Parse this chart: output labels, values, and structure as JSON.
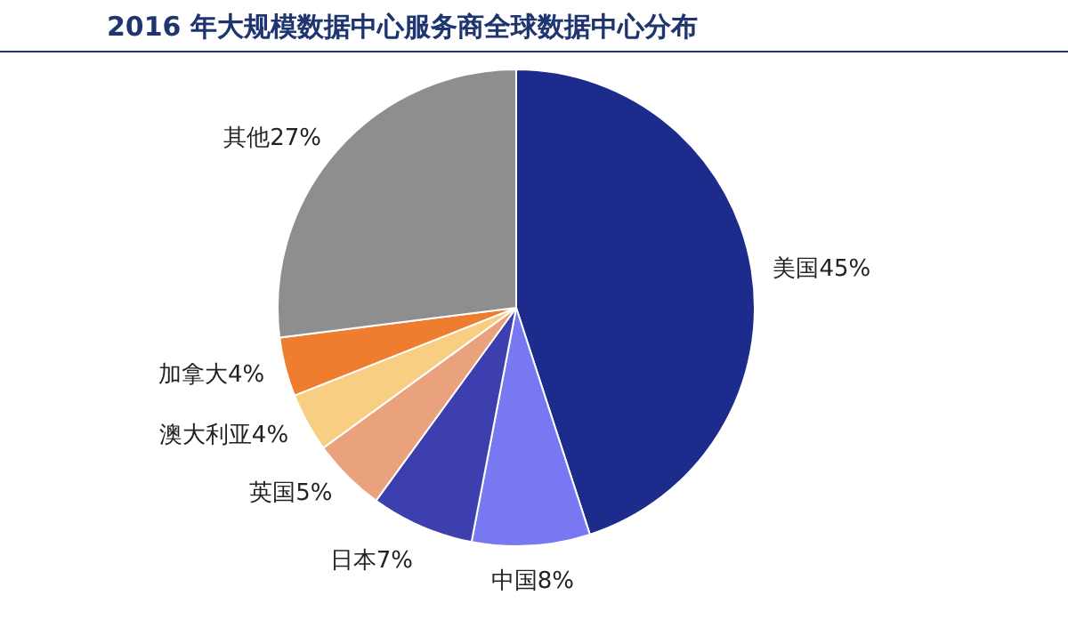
{
  "chart_data": {
    "type": "pie",
    "title": "2016 年大规模数据中心服务商全球数据中心分布",
    "categories": [
      "美国",
      "中国",
      "日本",
      "英国",
      "澳大利亚",
      "加拿大",
      "其他"
    ],
    "values": [
      45,
      8,
      7,
      5,
      4,
      4,
      27
    ],
    "value_labels": [
      "45%",
      "8%",
      "7%",
      "5%",
      "4%",
      "4%",
      "27%"
    ],
    "colors": [
      "#1c2b8c",
      "#7878f2",
      "#3d3fae",
      "#e9a27c",
      "#f8cf82",
      "#ee7d30",
      "#8e8e8e"
    ]
  }
}
